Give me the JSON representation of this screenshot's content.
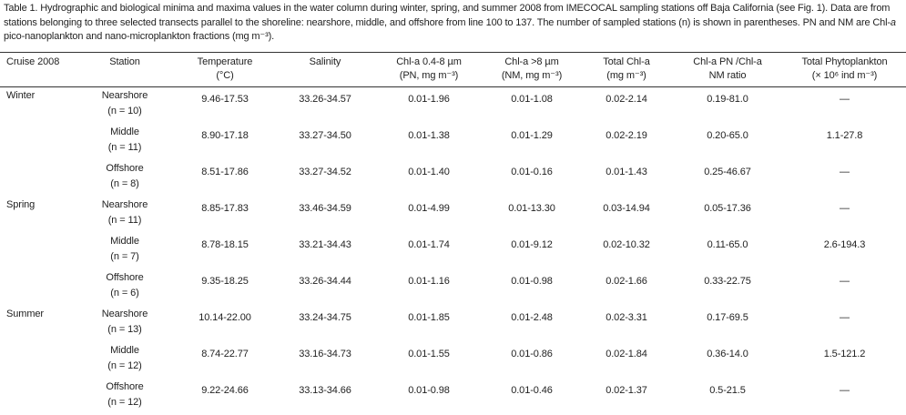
{
  "caption": [
    "Table 1. Hydrographic and biological minima and maxima values in the water column during winter, spring, and summer 2008 from IMECOCAL sampling stations off Baja California (see Fig. 1). Data are from stations belonging to three selected transects parallel to the shoreline: nearshore, middle, and offshore from line 100 to 137. The number of sampled stations (n) is shown in parentheses. PN and NM are Chl-",
    "a",
    " pico-nanoplankton and nano-microplankton fractions (mg m⁻³)."
  ],
  "table": {
    "header": [
      [
        "Cruise 2008"
      ],
      [
        "Station"
      ],
      [
        "Temperature",
        "(°C)"
      ],
      [
        "Salinity"
      ],
      [
        "Chl-a 0.4-8 µm",
        "(PN, mg m⁻³)"
      ],
      [
        "Chl-a >8 µm",
        "(NM, mg m⁻³)"
      ],
      [
        "Total Chl-a",
        "(mg m⁻³)"
      ],
      [
        "Chl-a PN /Chl-a",
        "NM ratio"
      ],
      [
        "Total Phytoplankton",
        "(× 10⁶ ind m⁻³)"
      ]
    ],
    "rows": [
      {
        "cruise": "Winter",
        "station": "Nearshore",
        "n": "(n = 10)",
        "cells": [
          "9.46-17.53",
          "33.26-34.57",
          "0.01-1.96",
          "0.01-1.08",
          "0.02-2.14",
          "0.19-81.0",
          "—"
        ]
      },
      {
        "station": "Middle",
        "n": "(n = 11)",
        "cells": [
          "8.90-17.18",
          "33.27-34.50",
          "0.01-1.38",
          "0.01-1.29",
          "0.02-2.19",
          "0.20-65.0",
          "1.1-27.8"
        ]
      },
      {
        "station": "Offshore",
        "n": "(n = 8)",
        "cells": [
          "8.51-17.86",
          "33.27-34.52",
          "0.01-1.40",
          "0.01-0.16",
          "0.01-1.43",
          "0.25-46.67",
          "—"
        ]
      },
      {
        "cruise": "Spring",
        "station": "Nearshore",
        "n": "(n = 11)",
        "cells": [
          "8.85-17.83",
          "33.46-34.59",
          "0.01-4.99",
          "0.01-13.30",
          "0.03-14.94",
          "0.05-17.36",
          "—"
        ]
      },
      {
        "station": "Middle",
        "n": "(n = 7)",
        "cells": [
          "8.78-18.15",
          "33.21-34.43",
          "0.01-1.74",
          "0.01-9.12",
          "0.02-10.32",
          "0.11-65.0",
          "2.6-194.3"
        ]
      },
      {
        "station": "Offshore",
        "n": "(n = 6)",
        "cells": [
          "9.35-18.25",
          "33.26-34.44",
          "0.01-1.16",
          "0.01-0.98",
          "0.02-1.66",
          "0.33-22.75",
          "—"
        ]
      },
      {
        "cruise": "Summer",
        "station": "Nearshore",
        "n": "(n = 13)",
        "cells": [
          "10.14-22.00",
          "33.24-34.75",
          "0.01-1.85",
          "0.01-2.48",
          "0.02-3.31",
          "0.17-69.5",
          "—"
        ]
      },
      {
        "station": "Middle",
        "n": "(n = 12)",
        "cells": [
          "8.74-22.77",
          "33.16-34.73",
          "0.01-1.55",
          "0.01-0.86",
          "0.02-1.84",
          "0.36-14.0",
          "1.5-121.2"
        ]
      },
      {
        "station": "Offshore",
        "n": "(n = 12)",
        "cells": [
          "9.22-24.66",
          "33.13-34.66",
          "0.01-0.98",
          "0.01-0.46",
          "0.02-1.37",
          "0.5-21.5",
          "—"
        ]
      }
    ]
  }
}
